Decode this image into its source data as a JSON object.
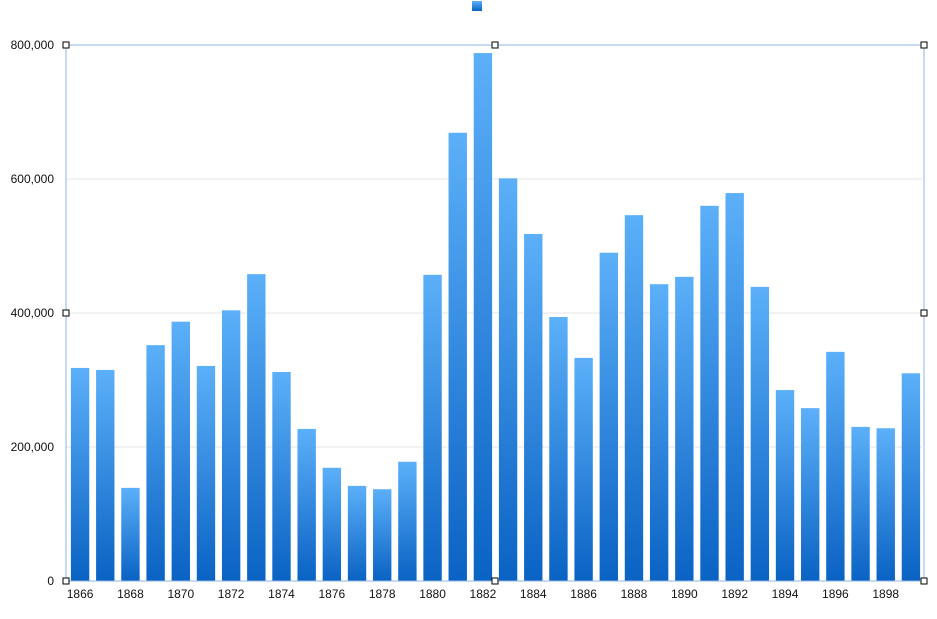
{
  "chart_data": {
    "type": "bar",
    "title": "",
    "xlabel": "",
    "ylabel": "",
    "legend": {
      "placement": "top",
      "entries": [
        {
          "name": "",
          "color": "#2b86e0"
        }
      ]
    },
    "categories": [
      "1866",
      "1867",
      "1868",
      "1869",
      "1870",
      "1871",
      "1872",
      "1873",
      "1874",
      "1875",
      "1876",
      "1877",
      "1878",
      "1879",
      "1880",
      "1881",
      "1882",
      "1883",
      "1884",
      "1885",
      "1886",
      "1887",
      "1888",
      "1889",
      "1890",
      "1891",
      "1892",
      "1893",
      "1894",
      "1895",
      "1896",
      "1897",
      "1898",
      "1899"
    ],
    "x_tick_labels": [
      "1866",
      "1868",
      "1870",
      "1872",
      "1874",
      "1876",
      "1878",
      "1880",
      "1882",
      "1884",
      "1886",
      "1888",
      "1890",
      "1892",
      "1894",
      "1896",
      "1898"
    ],
    "values": [
      318000,
      315000,
      139000,
      352000,
      387000,
      321000,
      404000,
      458000,
      312000,
      227000,
      169000,
      142000,
      137000,
      178000,
      457000,
      669000,
      788000,
      601000,
      518000,
      394000,
      333000,
      490000,
      546000,
      443000,
      454000,
      560000,
      579000,
      439000,
      285000,
      258000,
      342000,
      230000,
      228000,
      310000
    ],
    "ylim": [
      0,
      800000
    ],
    "y_ticks": [
      0,
      200000,
      400000,
      600000,
      800000
    ],
    "y_tick_labels": [
      "0",
      "200,000",
      "400,000",
      "600,000",
      "800,000"
    ],
    "grid": true,
    "colors": {
      "bar_top": "#5cb0f9",
      "bar_bottom": "#0a62c3",
      "selection": "#8fb4e6"
    }
  }
}
